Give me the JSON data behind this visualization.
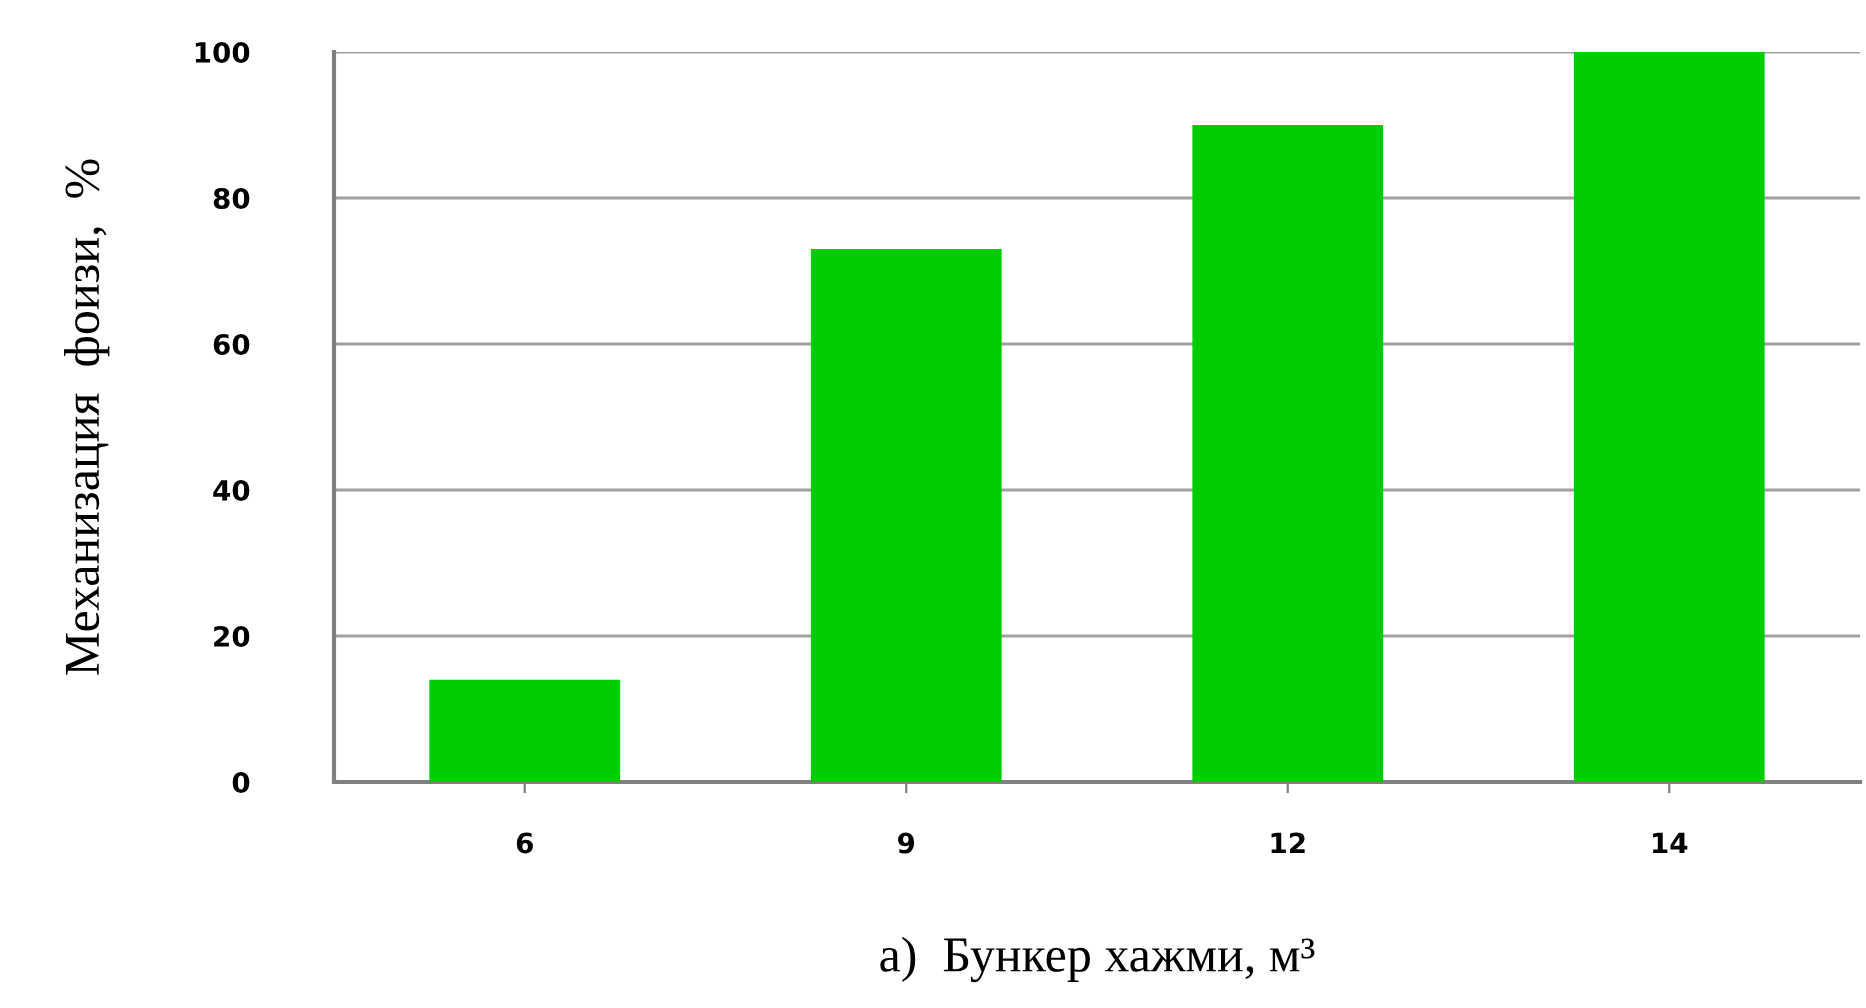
{
  "chart_data": {
    "type": "bar",
    "xlabel": "а)  Бункер хажми, м³",
    "ylabel": "Механизация  фоизи,  %",
    "categories": [
      "6",
      "9",
      "12",
      "14"
    ],
    "values": [
      14,
      73,
      90,
      100
    ],
    "color": "#00cc00",
    "ylim": [
      0,
      100
    ],
    "yticks": [
      0,
      20,
      40,
      60,
      80,
      100
    ],
    "grid": "y"
  }
}
